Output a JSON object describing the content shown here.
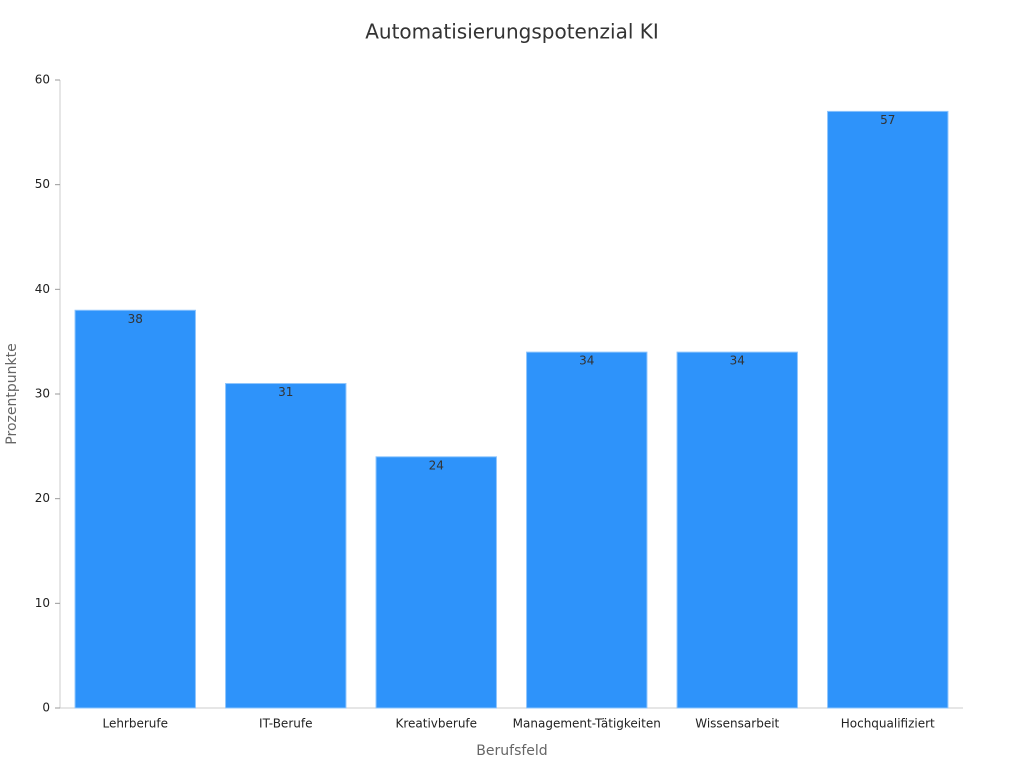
{
  "chart_data": {
    "type": "bar",
    "title": "Automatisierungspotenzial KI",
    "x_label": "Berufsfeld",
    "y_label": "Prozentpunkte",
    "categories": [
      "Lehrberufe",
      "IT-Berufe",
      "Kreativberufe",
      "Management-Tätigkeiten",
      "Wissensarbeit",
      "Hochqualifiziert"
    ],
    "values": [
      38,
      31,
      24,
      34,
      34,
      57
    ],
    "color": "#2e93fa",
    "ylim": [
      0,
      60
    ],
    "yticks": [
      0,
      10,
      20,
      30,
      40,
      50,
      60
    ],
    "grid": false
  }
}
